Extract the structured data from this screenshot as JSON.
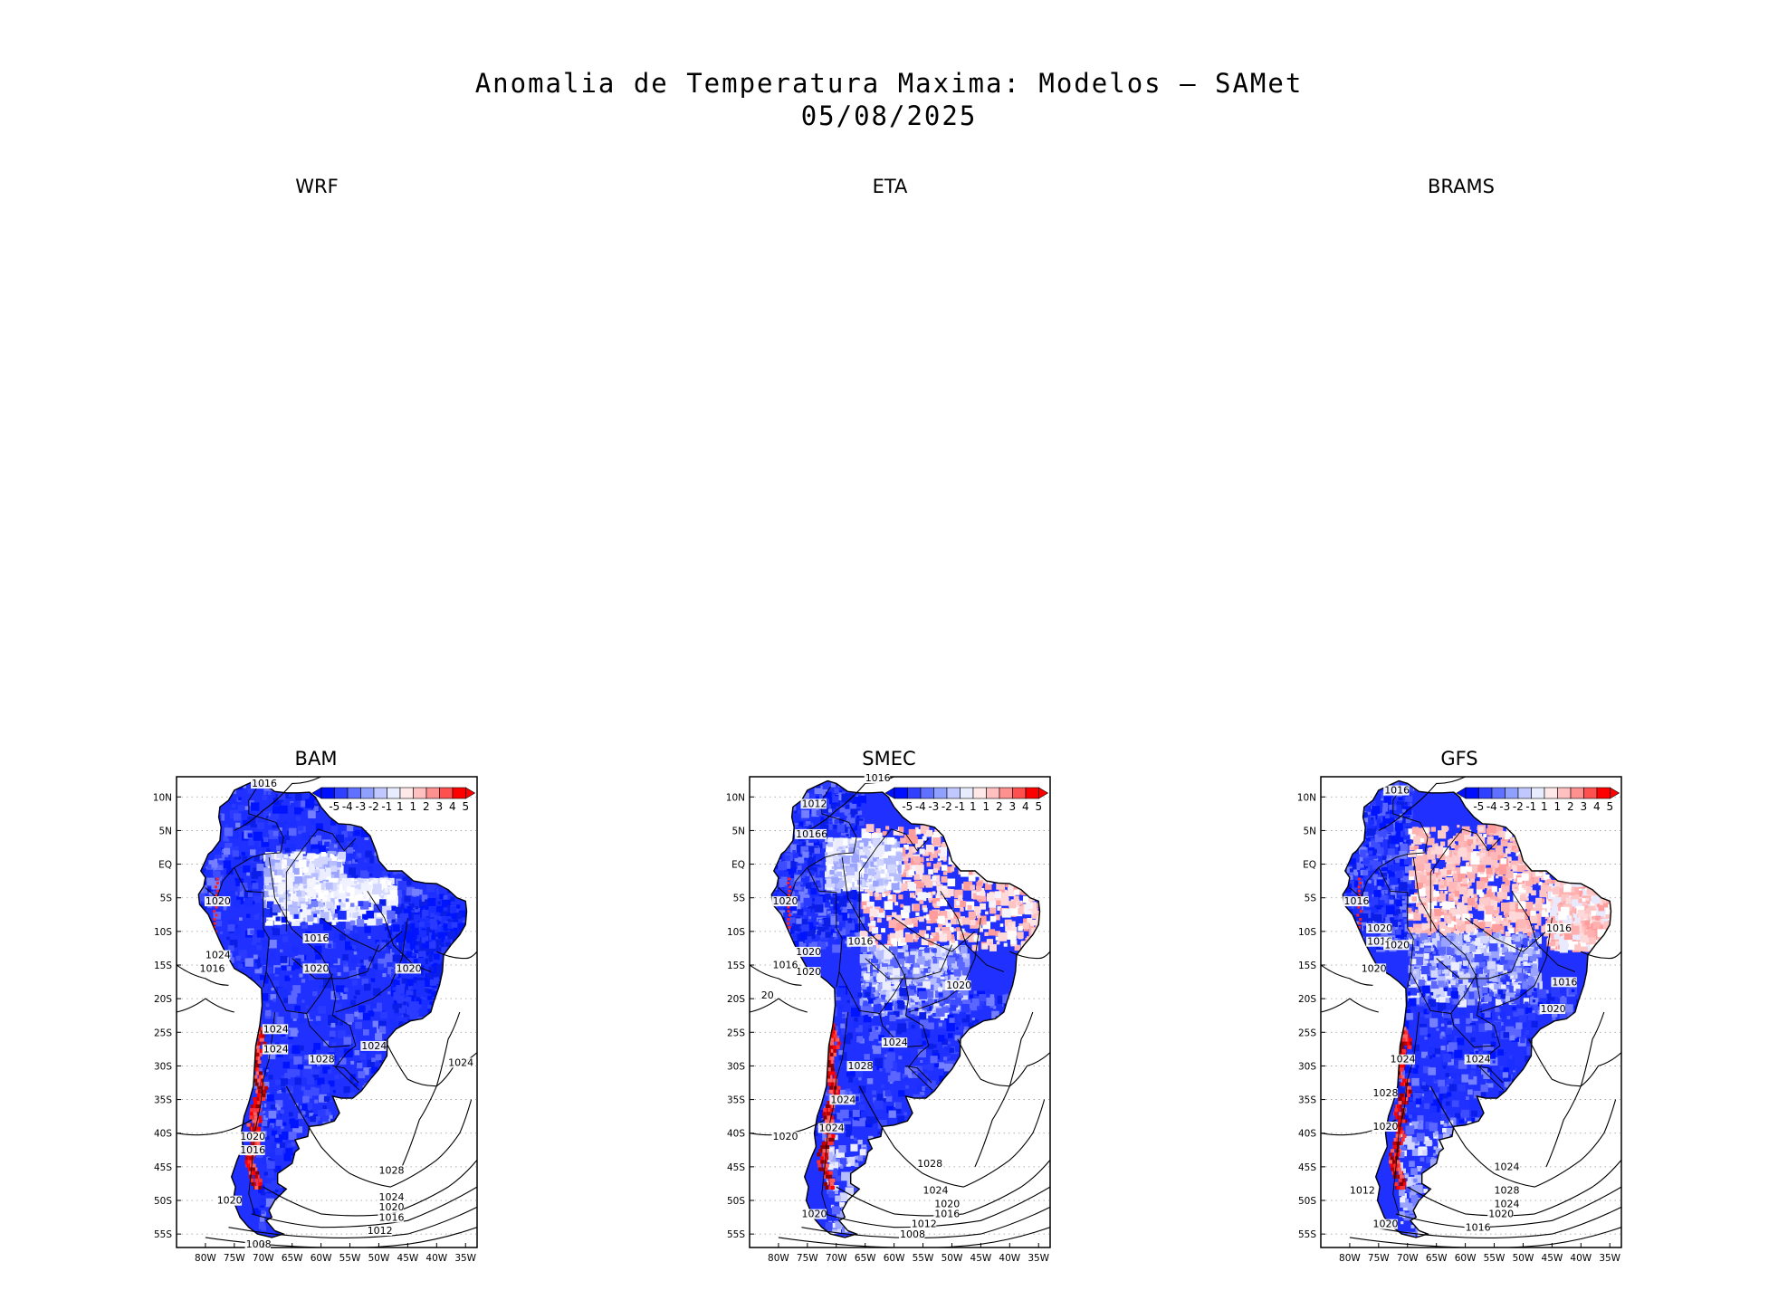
{
  "title": {
    "line1": "Anomalia de Temperatura Maxima: Modelos — SAMet",
    "line2": "05/08/2025"
  },
  "panels": [
    {
      "id": "wrf",
      "label": "WRF",
      "has_map": false
    },
    {
      "id": "eta",
      "label": "ETA",
      "has_map": false
    },
    {
      "id": "brams",
      "label": "BRAMS",
      "has_map": false
    },
    {
      "id": "bam",
      "label": "BAM",
      "has_map": true,
      "isobar_labels": [
        "1016",
        "1020",
        "1016",
        "1016",
        "1024",
        "1020",
        "1020",
        "1024",
        "1024",
        "1024",
        "1028",
        "1024",
        "1020",
        "1028",
        "1024",
        "1020",
        "1016",
        "1012",
        "1008",
        "1020",
        "1016"
      ]
    },
    {
      "id": "smec",
      "label": "SMEC",
      "has_map": true,
      "isobar_labels": [
        "1016",
        "1012",
        "10166",
        "1020",
        "1016",
        "1020",
        "1020",
        "1016",
        "1020",
        "1024",
        "1028",
        "1024",
        "1024",
        "1020",
        "1028",
        "1024",
        "1020",
        "1016",
        "1012",
        "1008",
        "1020",
        "20"
      ]
    },
    {
      "id": "gfs",
      "label": "GFS",
      "has_map": true,
      "isobar_labels": [
        "1016",
        "1016",
        "1020",
        "1016",
        "1020",
        "1016",
        "1016",
        "1020",
        "1024",
        "1024",
        "1028",
        "1020",
        "1024",
        "1028",
        "1024",
        "1020",
        "1016",
        "1012",
        "1020",
        "1020"
      ]
    }
  ],
  "axes": {
    "lat_ticks": [
      "10N",
      "5N",
      "EQ",
      "5S",
      "10S",
      "15S",
      "20S",
      "25S",
      "30S",
      "35S",
      "40S",
      "45S",
      "50S",
      "55S"
    ],
    "lon_ticks": [
      "80W",
      "75W",
      "70W",
      "65W",
      "60W",
      "55W",
      "50W",
      "45W",
      "40W",
      "35W"
    ]
  },
  "colorbar": {
    "labels": [
      "-5",
      "-4",
      "-3",
      "-2",
      "-1",
      "1",
      "1",
      "2",
      "3",
      "4",
      "5"
    ],
    "colors": [
      "#0010ff",
      "#3040ff",
      "#6070ff",
      "#90a0ff",
      "#c0c8ff",
      "#e8ecff",
      "#ffe8e8",
      "#ffc0c0",
      "#ff9090",
      "#ff5050",
      "#ff0000"
    ]
  }
}
